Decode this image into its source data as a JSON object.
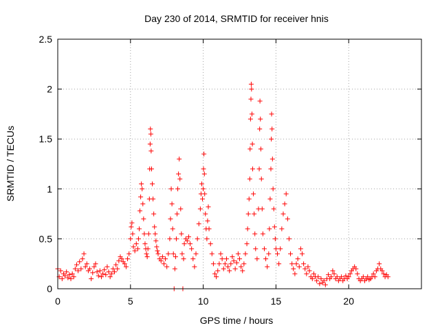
{
  "chart_data": {
    "type": "scatter",
    "title": "Day 230 of 2014, SRMTID for receiver hnis",
    "xlabel": "GPS time / hours",
    "ylabel": "SRMTID / TECUs",
    "xlim": [
      0,
      25
    ],
    "ylim": [
      0,
      2.5
    ],
    "x_ticks": [
      0,
      5,
      10,
      15,
      20
    ],
    "x_tick_labels": [
      "0",
      "5",
      "10",
      "15",
      "20"
    ],
    "y_ticks": [
      0,
      0.5,
      1,
      1.5,
      2,
      2.5
    ],
    "y_tick_labels": [
      "0",
      "0.5",
      "1",
      "1.5",
      "2",
      "2.5"
    ],
    "grid": true,
    "marker": "+",
    "series": [
      {
        "name": "SRMTID",
        "color": "#ff0000",
        "points": [
          [
            0.0,
            0.2
          ],
          [
            0.1,
            0.12
          ],
          [
            0.2,
            0.18
          ],
          [
            0.3,
            0.1
          ],
          [
            0.4,
            0.15
          ],
          [
            0.5,
            0.13
          ],
          [
            0.6,
            0.17
          ],
          [
            0.7,
            0.11
          ],
          [
            0.8,
            0.14
          ],
          [
            0.9,
            0.1
          ],
          [
            1.0,
            0.15
          ],
          [
            1.1,
            0.12
          ],
          [
            1.2,
            0.2
          ],
          [
            1.3,
            0.24
          ],
          [
            1.4,
            0.18
          ],
          [
            1.5,
            0.27
          ],
          [
            1.6,
            0.2
          ],
          [
            1.7,
            0.3
          ],
          [
            1.8,
            0.35
          ],
          [
            1.9,
            0.22
          ],
          [
            2.0,
            0.25
          ],
          [
            2.1,
            0.18
          ],
          [
            2.2,
            0.2
          ],
          [
            2.3,
            0.1
          ],
          [
            2.4,
            0.16
          ],
          [
            2.5,
            0.22
          ],
          [
            2.6,
            0.25
          ],
          [
            2.7,
            0.17
          ],
          [
            2.8,
            0.13
          ],
          [
            2.9,
            0.18
          ],
          [
            3.0,
            0.12
          ],
          [
            3.1,
            0.15
          ],
          [
            3.2,
            0.19
          ],
          [
            3.3,
            0.14
          ],
          [
            3.4,
            0.22
          ],
          [
            3.5,
            0.17
          ],
          [
            3.6,
            0.12
          ],
          [
            3.7,
            0.15
          ],
          [
            3.8,
            0.2
          ],
          [
            3.9,
            0.17
          ],
          [
            4.0,
            0.24
          ],
          [
            4.1,
            0.2
          ],
          [
            4.2,
            0.28
          ],
          [
            4.3,
            0.32
          ],
          [
            4.4,
            0.3
          ],
          [
            4.5,
            0.27
          ],
          [
            4.6,
            0.25
          ],
          [
            4.7,
            0.22
          ],
          [
            4.8,
            0.3
          ],
          [
            4.9,
            0.35
          ],
          [
            5.0,
            0.5
          ],
          [
            5.05,
            0.62
          ],
          [
            5.1,
            0.66
          ],
          [
            5.15,
            0.55
          ],
          [
            5.2,
            0.42
          ],
          [
            5.3,
            0.38
          ],
          [
            5.4,
            0.45
          ],
          [
            5.5,
            0.4
          ],
          [
            5.55,
            0.5
          ],
          [
            5.6,
            0.6
          ],
          [
            5.65,
            0.78
          ],
          [
            5.7,
            0.92
          ],
          [
            5.75,
            1.05
          ],
          [
            5.8,
            1.0
          ],
          [
            5.85,
            0.85
          ],
          [
            5.9,
            0.7
          ],
          [
            5.95,
            0.55
          ],
          [
            6.0,
            0.45
          ],
          [
            6.05,
            0.4
          ],
          [
            6.1,
            0.35
          ],
          [
            6.15,
            0.32
          ],
          [
            6.2,
            0.4
          ],
          [
            6.25,
            0.55
          ],
          [
            6.3,
            0.9
          ],
          [
            6.32,
            1.2
          ],
          [
            6.35,
            1.45
          ],
          [
            6.37,
            1.6
          ],
          [
            6.4,
            1.55
          ],
          [
            6.42,
            1.38
          ],
          [
            6.45,
            1.2
          ],
          [
            6.5,
            1.05
          ],
          [
            6.55,
            0.9
          ],
          [
            6.6,
            0.75
          ],
          [
            6.65,
            0.62
          ],
          [
            6.7,
            0.55
          ],
          [
            6.75,
            0.48
          ],
          [
            6.8,
            0.42
          ],
          [
            6.85,
            0.38
          ],
          [
            6.9,
            0.35
          ],
          [
            7.0,
            0.3
          ],
          [
            7.1,
            0.28
          ],
          [
            7.2,
            0.32
          ],
          [
            7.3,
            0.25
          ],
          [
            7.4,
            0.3
          ],
          [
            7.5,
            0.22
          ],
          [
            7.6,
            0.35
          ],
          [
            7.7,
            0.5
          ],
          [
            7.75,
            0.7
          ],
          [
            7.8,
            1.0
          ],
          [
            7.85,
            0.85
          ],
          [
            7.9,
            0.6
          ],
          [
            7.95,
            0.35
          ],
          [
            8.0,
            0.0
          ],
          [
            8.05,
            0.2
          ],
          [
            8.1,
            0.32
          ],
          [
            8.15,
            0.5
          ],
          [
            8.2,
            0.75
          ],
          [
            8.25,
            1.0
          ],
          [
            8.3,
            1.15
          ],
          [
            8.35,
            1.3
          ],
          [
            8.4,
            1.1
          ],
          [
            8.45,
            0.8
          ],
          [
            8.5,
            0.55
          ],
          [
            8.55,
            0.35
          ],
          [
            8.6,
            0.0
          ],
          [
            8.65,
            0.3
          ],
          [
            8.7,
            0.45
          ],
          [
            8.8,
            0.5
          ],
          [
            8.9,
            0.48
          ],
          [
            9.0,
            0.52
          ],
          [
            9.1,
            0.45
          ],
          [
            9.2,
            0.4
          ],
          [
            9.3,
            0.3
          ],
          [
            9.4,
            0.22
          ],
          [
            9.5,
            0.35
          ],
          [
            9.6,
            0.5
          ],
          [
            9.7,
            0.65
          ],
          [
            9.8,
            0.8
          ],
          [
            9.85,
            0.95
          ],
          [
            9.9,
            1.05
          ],
          [
            9.95,
            0.9
          ],
          [
            10.0,
            1.0
          ],
          [
            10.02,
            1.2
          ],
          [
            10.05,
            1.35
          ],
          [
            10.08,
            1.15
          ],
          [
            10.1,
            0.95
          ],
          [
            10.15,
            0.75
          ],
          [
            10.2,
            0.6
          ],
          [
            10.25,
            0.5
          ],
          [
            10.3,
            0.68
          ],
          [
            10.35,
            0.82
          ],
          [
            10.4,
            0.6
          ],
          [
            10.5,
            0.45
          ],
          [
            10.6,
            0.35
          ],
          [
            10.7,
            0.25
          ],
          [
            10.8,
            0.15
          ],
          [
            10.9,
            0.12
          ],
          [
            11.0,
            0.18
          ],
          [
            11.1,
            0.25
          ],
          [
            11.2,
            0.35
          ],
          [
            11.3,
            0.3
          ],
          [
            11.4,
            0.2
          ],
          [
            11.5,
            0.25
          ],
          [
            11.6,
            0.3
          ],
          [
            11.7,
            0.22
          ],
          [
            11.8,
            0.18
          ],
          [
            11.9,
            0.25
          ],
          [
            12.0,
            0.32
          ],
          [
            12.1,
            0.28
          ],
          [
            12.2,
            0.2
          ],
          [
            12.3,
            0.26
          ],
          [
            12.4,
            0.35
          ],
          [
            12.5,
            0.3
          ],
          [
            12.6,
            0.22
          ],
          [
            12.7,
            0.18
          ],
          [
            12.8,
            0.25
          ],
          [
            12.9,
            0.35
          ],
          [
            13.0,
            0.45
          ],
          [
            13.05,
            0.6
          ],
          [
            13.1,
            0.75
          ],
          [
            13.15,
            0.9
          ],
          [
            13.2,
            1.1
          ],
          [
            13.22,
            1.4
          ],
          [
            13.25,
            1.7
          ],
          [
            13.28,
            1.9
          ],
          [
            13.3,
            2.05
          ],
          [
            13.32,
            2.0
          ],
          [
            13.35,
            1.75
          ],
          [
            13.38,
            1.45
          ],
          [
            13.4,
            1.2
          ],
          [
            13.45,
            0.95
          ],
          [
            13.5,
            0.75
          ],
          [
            13.55,
            0.55
          ],
          [
            13.6,
            0.4
          ],
          [
            13.7,
            0.3
          ],
          [
            13.8,
            0.8
          ],
          [
            13.85,
            1.2
          ],
          [
            13.88,
            1.6
          ],
          [
            13.9,
            1.88
          ],
          [
            13.93,
            1.7
          ],
          [
            13.96,
            1.4
          ],
          [
            14.0,
            1.1
          ],
          [
            14.05,
            0.8
          ],
          [
            14.1,
            0.55
          ],
          [
            14.2,
            0.4
          ],
          [
            14.3,
            0.3
          ],
          [
            14.4,
            0.22
          ],
          [
            14.5,
            0.35
          ],
          [
            14.55,
            0.6
          ],
          [
            14.6,
            0.9
          ],
          [
            14.65,
            1.2
          ],
          [
            14.68,
            1.5
          ],
          [
            14.7,
            1.75
          ],
          [
            14.73,
            1.6
          ],
          [
            14.76,
            1.3
          ],
          [
            14.8,
            1.0
          ],
          [
            14.85,
            0.8
          ],
          [
            14.9,
            0.62
          ],
          [
            14.95,
            0.5
          ],
          [
            15.0,
            0.4
          ],
          [
            15.1,
            0.35
          ],
          [
            15.2,
            0.25
          ],
          [
            15.3,
            0.4
          ],
          [
            15.4,
            0.6
          ],
          [
            15.5,
            0.75
          ],
          [
            15.6,
            0.85
          ],
          [
            15.7,
            0.95
          ],
          [
            15.8,
            0.7
          ],
          [
            15.9,
            0.5
          ],
          [
            16.0,
            0.35
          ],
          [
            16.1,
            0.25
          ],
          [
            16.2,
            0.2
          ],
          [
            16.3,
            0.15
          ],
          [
            16.4,
            0.25
          ],
          [
            16.5,
            0.3
          ],
          [
            16.6,
            0.22
          ],
          [
            16.7,
            0.4
          ],
          [
            16.8,
            0.35
          ],
          [
            16.9,
            0.25
          ],
          [
            17.0,
            0.2
          ],
          [
            17.1,
            0.15
          ],
          [
            17.2,
            0.22
          ],
          [
            17.3,
            0.18
          ],
          [
            17.4,
            0.12
          ],
          [
            17.5,
            0.1
          ],
          [
            17.6,
            0.15
          ],
          [
            17.7,
            0.12
          ],
          [
            17.8,
            0.08
          ],
          [
            17.9,
            0.12
          ],
          [
            18.0,
            0.05
          ],
          [
            18.1,
            0.1
          ],
          [
            18.2,
            0.06
          ],
          [
            18.3,
            0.08
          ],
          [
            18.4,
            0.04
          ],
          [
            18.5,
            0.1
          ],
          [
            18.6,
            0.14
          ],
          [
            18.7,
            0.1
          ],
          [
            18.8,
            0.12
          ],
          [
            18.9,
            0.18
          ],
          [
            19.0,
            0.15
          ],
          [
            19.1,
            0.1
          ],
          [
            19.2,
            0.12
          ],
          [
            19.3,
            0.08
          ],
          [
            19.4,
            0.1
          ],
          [
            19.5,
            0.12
          ],
          [
            19.6,
            0.08
          ],
          [
            19.7,
            0.1
          ],
          [
            19.8,
            0.13
          ],
          [
            19.9,
            0.1
          ],
          [
            20.0,
            0.12
          ],
          [
            20.1,
            0.15
          ],
          [
            20.2,
            0.18
          ],
          [
            20.3,
            0.2
          ],
          [
            20.4,
            0.22
          ],
          [
            20.5,
            0.2
          ],
          [
            20.6,
            0.15
          ],
          [
            20.7,
            0.1
          ],
          [
            20.8,
            0.08
          ],
          [
            20.9,
            0.1
          ],
          [
            21.0,
            0.12
          ],
          [
            21.1,
            0.08
          ],
          [
            21.2,
            0.1
          ],
          [
            21.3,
            0.12
          ],
          [
            21.4,
            0.09
          ],
          [
            21.5,
            0.1
          ],
          [
            21.6,
            0.12
          ],
          [
            21.7,
            0.15
          ],
          [
            21.8,
            0.12
          ],
          [
            21.9,
            0.18
          ],
          [
            22.0,
            0.2
          ],
          [
            22.1,
            0.25
          ],
          [
            22.2,
            0.2
          ],
          [
            22.3,
            0.18
          ],
          [
            22.4,
            0.15
          ],
          [
            22.5,
            0.12
          ],
          [
            22.6,
            0.14
          ],
          [
            22.7,
            0.12
          ]
        ]
      }
    ]
  }
}
